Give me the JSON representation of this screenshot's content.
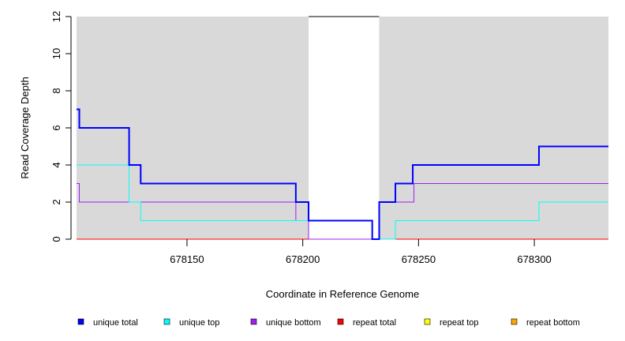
{
  "chart_data": {
    "type": "line",
    "step": true,
    "title": "",
    "xlabel": "Coordinate in Reference Genome",
    "ylabel": "Read Coverage Depth",
    "xlim": [
      678102.3,
      678332
    ],
    "ylim": [
      0,
      12
    ],
    "xticks": [
      678150,
      678200,
      678250,
      678300
    ],
    "xtick_labels": [
      "678150",
      "678200",
      "678250",
      "678300"
    ],
    "yticks": [
      0,
      2,
      4,
      6,
      8,
      10,
      12
    ],
    "ytick_labels": [
      "0",
      "2",
      "4",
      "6",
      "8",
      "10",
      "12"
    ],
    "shaded_regions": [
      [
        678102.3,
        678202.5
      ],
      [
        678233,
        678332
      ]
    ],
    "shade_color": "#d9d9d9",
    "legend_position": "bottom",
    "series": [
      {
        "name": "unique total",
        "color": "#0000ff",
        "width": 2,
        "x": [
          678102.3,
          678103.5,
          678125,
          678130,
          678197,
          678202.5,
          678230,
          678233,
          678240,
          678247.5,
          678302
        ],
        "y": [
          7,
          6,
          4,
          3,
          2,
          1,
          0,
          2,
          3,
          4,
          5
        ]
      },
      {
        "name": "unique top",
        "color": "#00ffff",
        "width": 1,
        "x": [
          678102.3,
          678125,
          678130,
          678230,
          678240,
          678302
        ],
        "y": [
          4,
          2,
          1,
          0,
          1,
          2
        ]
      },
      {
        "name": "unique bottom",
        "color": "#a020f0",
        "width": 1,
        "x": [
          678102.3,
          678103.5,
          678197,
          678202.5,
          678233,
          678248
        ],
        "y": [
          3,
          2,
          1,
          0,
          2,
          3
        ]
      },
      {
        "name": "repeat total",
        "color": "#ff0000",
        "width": 1,
        "x": [
          678102.3
        ],
        "y": [
          0
        ]
      },
      {
        "name": "repeat top",
        "color": "#ffff00",
        "width": 1,
        "x": [
          678102.3
        ],
        "y": [
          0
        ]
      },
      {
        "name": "repeat bottom",
        "color": "#ffa500",
        "width": 1,
        "x": [
          678102.3
        ],
        "y": [
          0
        ]
      }
    ]
  }
}
